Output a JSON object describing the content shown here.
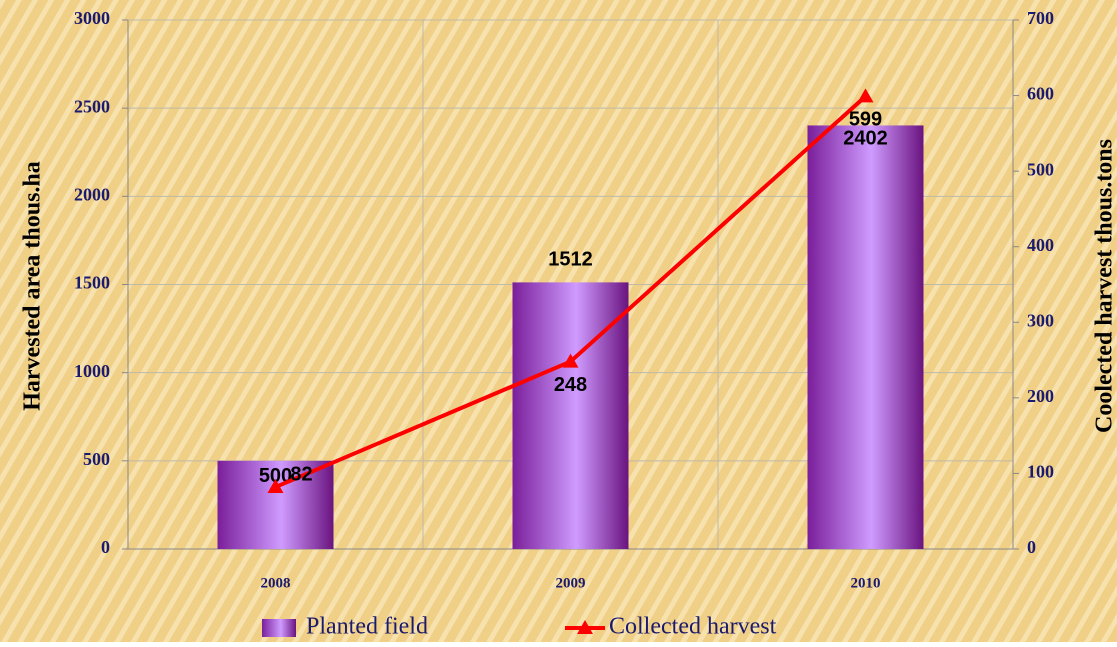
{
  "chart_data": {
    "type": "bar",
    "categories": [
      "2008",
      "2009",
      "2010"
    ],
    "y_label": "Harvested area thous.ha",
    "y2_label": "Coolected harvest thous.tons",
    "series": [
      {
        "name": "Planted field",
        "type": "bar",
        "color": "#a855d6",
        "values": [
          500,
          1512,
          2402
        ]
      },
      {
        "name": "Collected harvest",
        "type": "line",
        "axis": "y2",
        "color": "#ff0000",
        "values": [
          82,
          248,
          599
        ]
      }
    ],
    "ylim": [
      0,
      3000
    ],
    "yticks": [
      0,
      500,
      1000,
      1500,
      2000,
      2500,
      3000
    ],
    "y2lim": [
      0,
      700
    ],
    "y2ticks": [
      0,
      100,
      200,
      300,
      400,
      500,
      600,
      700
    ],
    "grid": true,
    "legend": "bottom"
  }
}
